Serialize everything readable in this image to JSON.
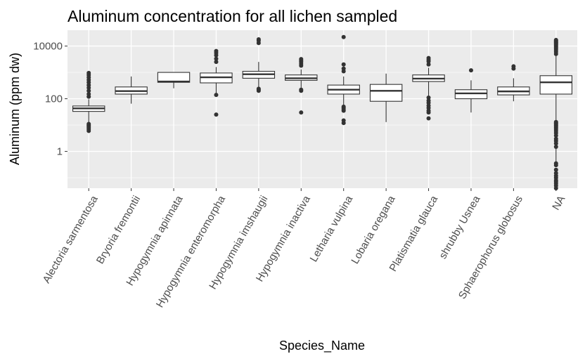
{
  "chart_data": {
    "type": "boxplot",
    "title": "Aluminum concentration for all lichen sampled",
    "xlabel": "Species_Name",
    "ylabel": "Aluminum (ppm dw)",
    "y_scale": "log10",
    "ylim": [
      0.04,
      40000
    ],
    "y_ticks": [
      1,
      100,
      10000
    ],
    "y_tick_labels": [
      "1",
      "100",
      "10000"
    ],
    "grid": true,
    "colors": {
      "panel": "#ebebeb",
      "grid": "#ffffff",
      "box_fill": "#ffffff",
      "box_line": "#333333",
      "text": "#000000",
      "tick_text": "#4d4d4d"
    },
    "categories": [
      "Alectoria sarmentosa",
      "Bryoria fremontii",
      "Hypogymnia apinnata",
      "Hypogymnia enteromorpha",
      "Hypogymnia imshaugii",
      "Hypogymnia inactiva",
      "Letharia vulpina",
      "Lobaria oregana",
      "Platismatia glauca",
      "shrubby Usnea",
      "Sphaerophorus globosus",
      "NA"
    ],
    "boxes": [
      {
        "lower_whisker": 12,
        "q1": 33,
        "median": 43,
        "q3": 53,
        "upper_whisker": 95,
        "outliers": [
          6,
          7,
          8,
          9,
          10,
          11,
          120,
          150,
          200,
          260,
          330,
          420,
          520,
          650,
          800,
          950
        ]
      },
      {
        "lower_whisker": 65,
        "q1": 150,
        "median": 195,
        "q3": 280,
        "upper_whisker": 700,
        "outliers": []
      },
      {
        "lower_whisker": 250,
        "q1": 420,
        "median": 450,
        "q3": 1000,
        "upper_whisker": 1000,
        "outliers": []
      },
      {
        "lower_whisker": 130,
        "q1": 400,
        "median": 650,
        "q3": 950,
        "upper_whisker": 1600,
        "outliers": [
          25,
          140,
          2500,
          3300,
          4500,
          5500,
          6500
        ]
      },
      {
        "lower_whisker": 220,
        "q1": 600,
        "median": 850,
        "q3": 1100,
        "upper_whisker": 2500,
        "outliers": [
          200,
          220,
          240,
          13000,
          16000,
          18000
        ]
      },
      {
        "lower_whisker": 220,
        "q1": 500,
        "median": 600,
        "q3": 800,
        "upper_whisker": 1300,
        "outliers": [
          30,
          200,
          220,
          1800,
          2100,
          2500,
          2800,
          3200
        ]
      },
      {
        "lower_whisker": 55,
        "q1": 150,
        "median": 220,
        "q3": 330,
        "upper_whisker": 700,
        "outliers": [
          12,
          15,
          35,
          40,
          45,
          50,
          1100,
          1400,
          2000,
          22000
        ]
      },
      {
        "lower_whisker": 13,
        "q1": 80,
        "median": 200,
        "q3": 350,
        "upper_whisker": 900,
        "outliers": []
      },
      {
        "lower_whisker": 130,
        "q1": 450,
        "median": 580,
        "q3": 800,
        "upper_whisker": 1500,
        "outliers": [
          18,
          30,
          35,
          45,
          55,
          70,
          85,
          110,
          2000,
          2600,
          3000,
          3500
        ]
      },
      {
        "lower_whisker": 30,
        "q1": 100,
        "median": 160,
        "q3": 220,
        "upper_whisker": 500,
        "outliers": [
          1200
        ]
      },
      {
        "lower_whisker": 80,
        "q1": 140,
        "median": 190,
        "q3": 280,
        "upper_whisker": 600,
        "outliers": [
          1400,
          1700
        ]
      },
      {
        "lower_whisker": 0.4,
        "q1": 150,
        "median": 420,
        "q3": 750,
        "upper_whisker": 4200,
        "outliers": [
          0.04,
          0.05,
          0.06,
          0.07,
          0.08,
          0.1,
          0.12,
          0.15,
          0.2,
          0.3,
          0.35,
          1.5,
          2,
          2.5,
          3,
          4,
          5,
          6,
          7,
          8,
          9,
          10,
          11,
          12,
          13,
          5000,
          6000,
          7000,
          8000,
          9000,
          10000,
          11000,
          12000,
          13000,
          14000,
          15000,
          16000,
          17000
        ]
      }
    ]
  }
}
